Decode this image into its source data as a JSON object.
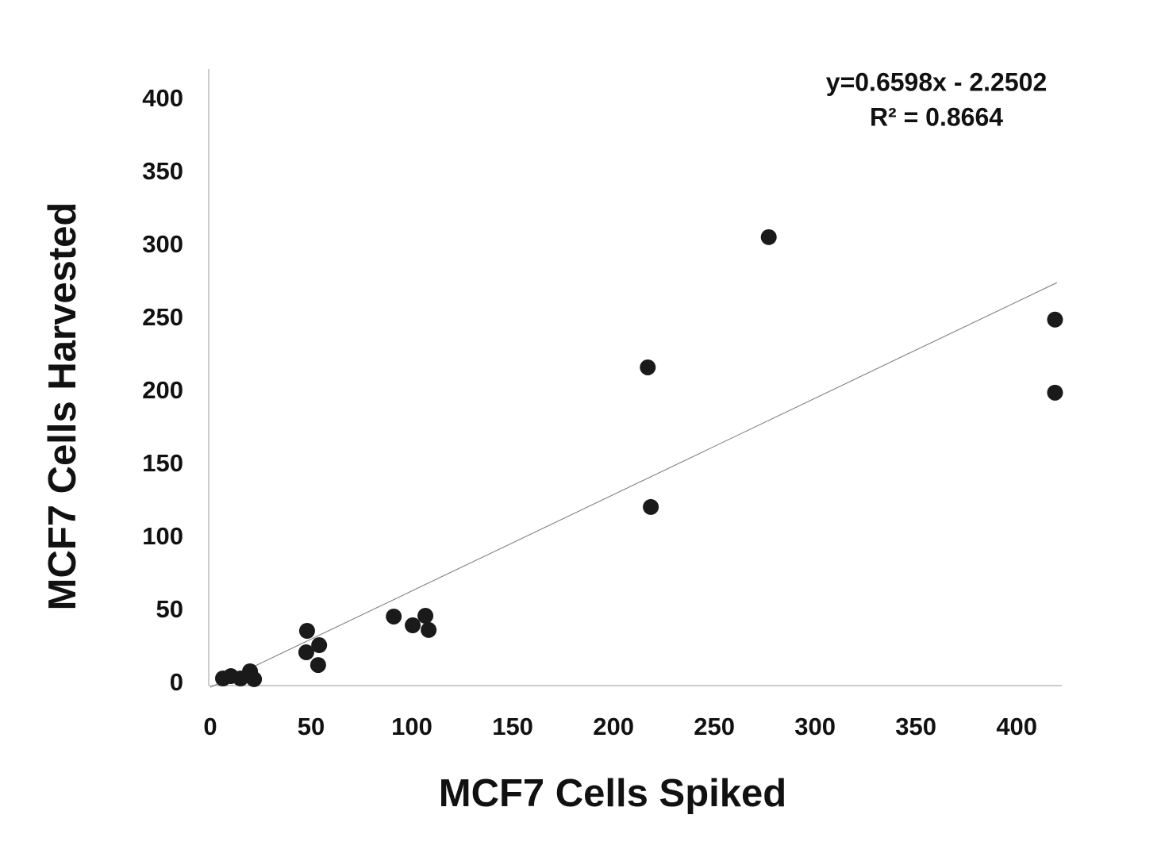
{
  "chart_data": {
    "type": "scatter",
    "x_label": "MCF7 Cells Spiked",
    "y_label": "MCF7 Cells Harvested",
    "annotations": [
      "y=0.6598x - 2.2502",
      "R² = 0.8664"
    ],
    "trendline": {
      "slope": 0.6598,
      "intercept": -2.2502
    },
    "xlim": [
      0,
      420
    ],
    "ylim": [
      0,
      420
    ],
    "xticks": [
      0,
      50,
      100,
      150,
      200,
      250,
      300,
      350,
      400
    ],
    "yticks": [
      0,
      50,
      100,
      150,
      200,
      250,
      300,
      350,
      400
    ],
    "grid": false,
    "color": "#1a1a1a",
    "x": [
      6.3,
      10.2,
      15,
      19.7,
      21.7,
      48,
      47.6,
      54,
      53.5,
      91,
      100.4,
      106.7,
      108.3,
      217,
      218.5,
      277,
      419,
      419
    ],
    "values": [
      3.8,
      5.4,
      3.8,
      8.7,
      3.3,
      36.4,
      21.7,
      26.6,
      13,
      46.2,
      40.2,
      46.7,
      37,
      216.8,
      121.2,
      306,
      249.5,
      199.5
    ]
  }
}
